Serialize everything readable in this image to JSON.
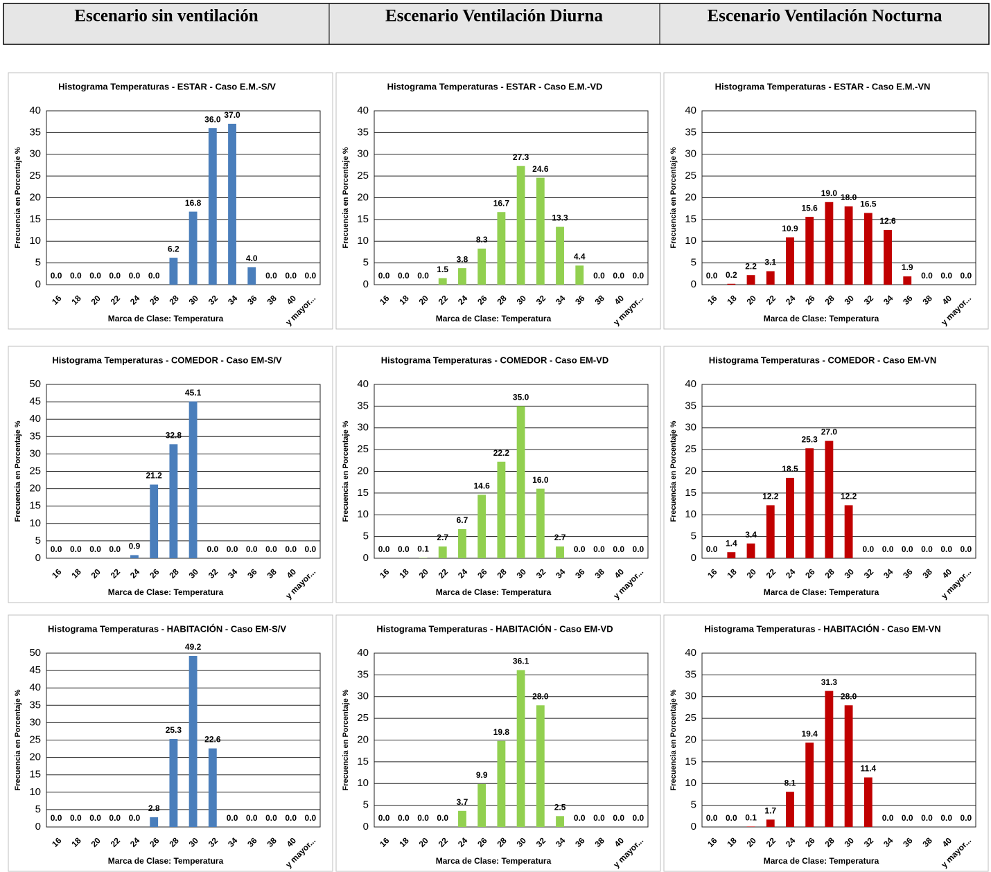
{
  "header": {
    "columns": [
      "Escenario sin ventilación",
      "Escenario Ventilación Diurna",
      "Escenario Ventilación Nocturna"
    ]
  },
  "chart_data": [
    {
      "type": "bar",
      "title": "Histograma Temperaturas - ESTAR - Caso E.M.-S/V",
      "x_label": "Marca de Clase: Temperatura",
      "y_label": "Frecuencia en Porcentaje %",
      "categories": [
        "16",
        "18",
        "20",
        "22",
        "24",
        "26",
        "28",
        "30",
        "32",
        "34",
        "36",
        "38",
        "40",
        "y mayor..."
      ],
      "values": [
        0,
        0,
        0,
        0,
        0,
        0,
        6.2,
        16.8,
        36.0,
        37.0,
        4.0,
        0,
        0,
        0
      ],
      "value_labels": [
        "0.0",
        "0.0",
        "0.0",
        "0.0",
        "0.0",
        "0.0",
        "6.2",
        "16.8",
        "36.0",
        "37.0",
        "4.0",
        "0.0",
        "0.0",
        "0.0"
      ],
      "color": "#4a7ebb",
      "ylim": [
        0,
        40
      ],
      "yticks": [
        0,
        5,
        10,
        15,
        20,
        25,
        30,
        35,
        40
      ],
      "grid": true
    },
    {
      "type": "bar",
      "title": "Histograma Temperaturas - ESTAR - Caso E.M.-VD",
      "x_label": "Marca de Clase: Temperatura",
      "y_label": "Frecuencia en Porcentaje %",
      "categories": [
        "16",
        "18",
        "20",
        "22",
        "24",
        "26",
        "28",
        "30",
        "32",
        "34",
        "36",
        "38",
        "40",
        "y mayor..."
      ],
      "values": [
        0,
        0,
        0,
        1.5,
        3.8,
        8.3,
        16.7,
        27.3,
        24.6,
        13.3,
        4.4,
        0,
        0,
        0
      ],
      "value_labels": [
        "0.0",
        "0.0",
        "0.0",
        "1.5",
        "3.8",
        "8.3",
        "16.7",
        "27.3",
        "24.6",
        "13.3",
        "4.4",
        "0.0",
        "0.0",
        "0.0"
      ],
      "color": "#92d050",
      "ylim": [
        0,
        40
      ],
      "yticks": [
        0,
        5,
        10,
        15,
        20,
        25,
        30,
        35,
        40
      ],
      "grid": true
    },
    {
      "type": "bar",
      "title": "Histograma Temperaturas - ESTAR - Caso E.M.-VN",
      "x_label": "Marca de Clase: Temperatura",
      "y_label": "Frecuencia en Porcentaje %",
      "categories": [
        "16",
        "18",
        "20",
        "22",
        "24",
        "26",
        "28",
        "30",
        "32",
        "34",
        "36",
        "38",
        "40",
        "y mayor..."
      ],
      "values": [
        0,
        0.2,
        2.2,
        3.1,
        10.9,
        15.6,
        19.0,
        18.0,
        16.5,
        12.6,
        1.9,
        0,
        0,
        0
      ],
      "value_labels": [
        "0.0",
        "0.2",
        "2.2",
        "3.1",
        "10.9",
        "15.6",
        "19.0",
        "18.0",
        "16.5",
        "12.6",
        "1.9",
        "0.0",
        "0.0",
        "0.0"
      ],
      "color": "#c00000",
      "ylim": [
        0,
        40
      ],
      "yticks": [
        0,
        5,
        10,
        15,
        20,
        25,
        30,
        35,
        40
      ],
      "grid": true
    },
    {
      "type": "bar",
      "title": "Histograma Temperaturas - COMEDOR - Caso EM-S/V",
      "x_label": "Marca de Clase: Temperatura",
      "y_label": "Frecuencia en Porcentaje %",
      "categories": [
        "16",
        "18",
        "20",
        "22",
        "24",
        "26",
        "28",
        "30",
        "32",
        "34",
        "36",
        "38",
        "40",
        "y mayor..."
      ],
      "values": [
        0,
        0,
        0,
        0,
        0.9,
        21.2,
        32.8,
        45.1,
        0,
        0,
        0,
        0,
        0,
        0
      ],
      "value_labels": [
        "0.0",
        "0.0",
        "0.0",
        "0.0",
        "0.9",
        "21.2",
        "32.8",
        "45.1",
        "0.0",
        "0.0",
        "0.0",
        "0.0",
        "0.0",
        "0.0"
      ],
      "color": "#4a7ebb",
      "ylim": [
        0,
        50
      ],
      "yticks": [
        0,
        5,
        10,
        15,
        20,
        25,
        30,
        35,
        40,
        45,
        50
      ],
      "grid": true
    },
    {
      "type": "bar",
      "title": "Histograma Temperaturas - COMEDOR - Caso EM-VD",
      "x_label": "Marca de Clase: Temperatura",
      "y_label": "Frecuencia en Porcentaje %",
      "categories": [
        "16",
        "18",
        "20",
        "22",
        "24",
        "26",
        "28",
        "30",
        "32",
        "34",
        "36",
        "38",
        "40",
        "y mayor..."
      ],
      "values": [
        0,
        0,
        0.1,
        2.7,
        6.7,
        14.6,
        22.2,
        35.0,
        16.0,
        2.7,
        0,
        0,
        0,
        0
      ],
      "value_labels": [
        "0.0",
        "0.0",
        "0.1",
        "2.7",
        "6.7",
        "14.6",
        "22.2",
        "35.0",
        "16.0",
        "2.7",
        "0.0",
        "0.0",
        "0.0",
        "0.0"
      ],
      "color": "#92d050",
      "ylim": [
        0,
        40
      ],
      "yticks": [
        0,
        5,
        10,
        15,
        20,
        25,
        30,
        35,
        40
      ],
      "grid": true
    },
    {
      "type": "bar",
      "title": "Histograma Temperaturas - COMEDOR - Caso EM-VN",
      "x_label": "Marca de Clase: Temperatura",
      "y_label": "Frecuencia en Porcentaje %",
      "categories": [
        "16",
        "18",
        "20",
        "22",
        "24",
        "26",
        "28",
        "30",
        "32",
        "34",
        "36",
        "38",
        "40",
        "y mayor..."
      ],
      "values": [
        0,
        1.4,
        3.4,
        12.2,
        18.5,
        25.3,
        27.0,
        12.2,
        0,
        0,
        0,
        0,
        0,
        0
      ],
      "value_labels": [
        "0.0",
        "1.4",
        "3.4",
        "12.2",
        "18.5",
        "25.3",
        "27.0",
        "12.2",
        "0.0",
        "0.0",
        "0.0",
        "0.0",
        "0.0",
        "0.0"
      ],
      "color": "#c00000",
      "ylim": [
        0,
        40
      ],
      "yticks": [
        0,
        5,
        10,
        15,
        20,
        25,
        30,
        35,
        40
      ],
      "grid": true
    },
    {
      "type": "bar",
      "title": "Histograma Temperaturas - HABITACIÓN - Caso EM-S/V",
      "x_label": "Marca de Clase: Temperatura",
      "y_label": "Frecuencia en Porcentaje %",
      "categories": [
        "16",
        "18",
        "20",
        "22",
        "24",
        "26",
        "28",
        "30",
        "32",
        "34",
        "36",
        "38",
        "40",
        "y mayor..."
      ],
      "values": [
        0,
        0,
        0,
        0,
        0,
        2.8,
        25.3,
        49.2,
        22.6,
        0,
        0,
        0,
        0,
        0
      ],
      "value_labels": [
        "0.0",
        "0.0",
        "0.0",
        "0.0",
        "0.0",
        "2.8",
        "25.3",
        "49.2",
        "22.6",
        "0.0",
        "0.0",
        "0.0",
        "0.0",
        "0.0"
      ],
      "color": "#4a7ebb",
      "ylim": [
        0,
        50
      ],
      "yticks": [
        0,
        5,
        10,
        15,
        20,
        25,
        30,
        35,
        40,
        45,
        50
      ],
      "grid": true
    },
    {
      "type": "bar",
      "title": "Histograma Temperaturas - HABITACIÓN - Caso EM-VD",
      "x_label": "Marca de Clase: Temperatura",
      "y_label": "Frecuencia en Porcentaje %",
      "categories": [
        "16",
        "18",
        "20",
        "22",
        "24",
        "26",
        "28",
        "30",
        "32",
        "34",
        "36",
        "38",
        "40",
        "y mayor..."
      ],
      "values": [
        0,
        0,
        0,
        0,
        3.7,
        9.9,
        19.8,
        36.1,
        28.0,
        2.5,
        0,
        0,
        0,
        0
      ],
      "value_labels": [
        "0.0",
        "0.0",
        "0.0",
        "0.0",
        "3.7",
        "9.9",
        "19.8",
        "36.1",
        "28.0",
        "2.5",
        "0.0",
        "0.0",
        "0.0",
        "0.0"
      ],
      "color": "#92d050",
      "ylim": [
        0,
        40
      ],
      "yticks": [
        0,
        5,
        10,
        15,
        20,
        25,
        30,
        35,
        40
      ],
      "grid": true
    },
    {
      "type": "bar",
      "title": "Histograma Temperaturas - HABITACIÓN - Caso EM-VN",
      "x_label": "Marca de Clase: Temperatura",
      "y_label": "Frecuencia en Porcentaje %",
      "categories": [
        "16",
        "18",
        "20",
        "22",
        "24",
        "26",
        "28",
        "30",
        "32",
        "34",
        "36",
        "38",
        "40",
        "y mayor..."
      ],
      "values": [
        0,
        0,
        0.1,
        1.7,
        8.1,
        19.4,
        31.3,
        28.0,
        11.4,
        0,
        0,
        0,
        0,
        0
      ],
      "value_labels": [
        "0.0",
        "0.0",
        "0.1",
        "1.7",
        "8.1",
        "19.4",
        "31.3",
        "28.0",
        "11.4",
        "0.0",
        "0.0",
        "0.0",
        "0.0",
        "0.0"
      ],
      "color": "#c00000",
      "ylim": [
        0,
        40
      ],
      "yticks": [
        0,
        5,
        10,
        15,
        20,
        25,
        30,
        35,
        40
      ],
      "grid": true
    }
  ]
}
